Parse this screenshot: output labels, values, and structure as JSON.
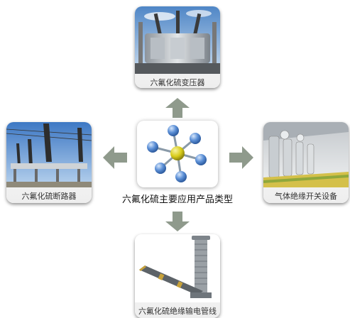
{
  "center": {
    "label": "六氟化硫主要应用产品类型",
    "icon": "sf6-molecule-icon"
  },
  "products": {
    "top": {
      "label": "六氟化硫变压器",
      "icon": "transformer-photo"
    },
    "left": {
      "label": "六氟化硫断路器",
      "icon": "circuit-breaker-photo"
    },
    "right": {
      "label": "气体绝缘开关设备",
      "icon": "gis-switchgear-photo"
    },
    "bottom": {
      "label": "六氟化硫绝缘输电管线",
      "icon": "gas-insulated-line-photo"
    }
  },
  "colors": {
    "arrow": "#8f9a8c",
    "molecule_center": "#d8cc1a",
    "molecule_atoms": "#5b8fd6"
  }
}
